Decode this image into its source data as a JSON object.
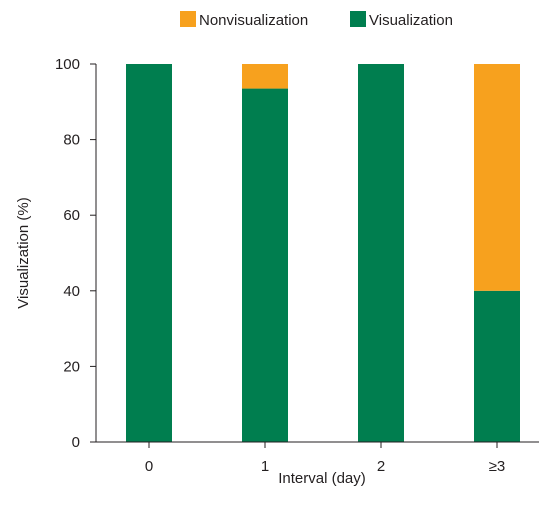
{
  "chart_data": {
    "type": "bar",
    "stacked": true,
    "categories": [
      "0",
      "1",
      "2",
      "≥3"
    ],
    "series": [
      {
        "name": "Visualization",
        "color": "#007e4f",
        "values": [
          100,
          93.5,
          100,
          40
        ]
      },
      {
        "name": "Nonvisualization",
        "color": "#f7a11e",
        "values": [
          0,
          6.5,
          0,
          60
        ]
      }
    ],
    "legend_order": [
      "Nonvisualization",
      "Visualization"
    ],
    "legend_placement": "top",
    "xlabel": "Interval (day)",
    "ylabel": "Visualization (%)",
    "ylim": [
      0,
      100
    ],
    "yticks": [
      "0",
      "20",
      "40",
      "60",
      "80",
      "100"
    ],
    "grid": false
  }
}
